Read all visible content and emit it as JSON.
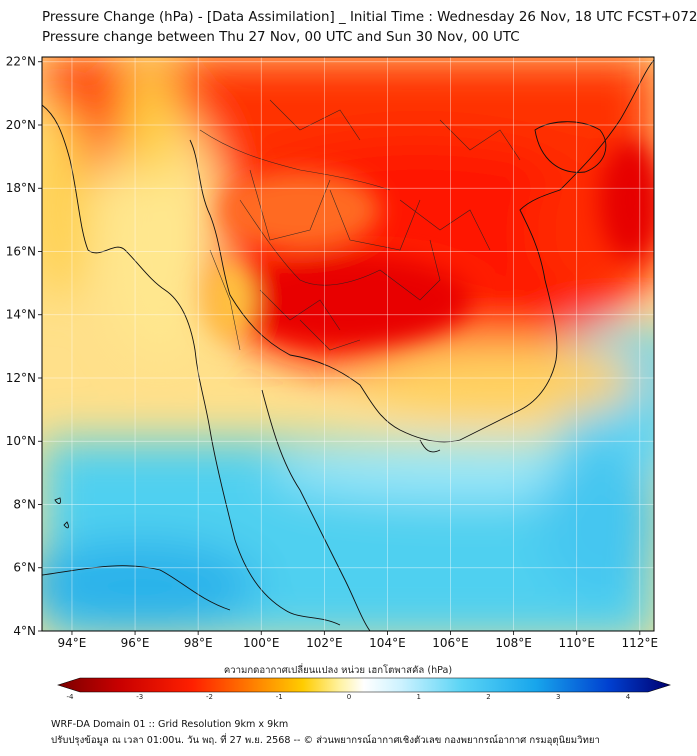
{
  "title": {
    "line1": "Pressure Change (hPa) - [Data Assimilation] _ Initial Time : Wednesday 26 Nov, 18 UTC FCST+072",
    "line2": "Pressure change between Thu 27 Nov, 00 UTC and Sun 30 Nov, 00 UTC"
  },
  "map": {
    "lat_labels": [
      "22°N",
      "20°N",
      "18°N",
      "16°N",
      "14°N",
      "12°N",
      "10°N",
      "8°N",
      "6°N",
      "4°N"
    ],
    "lon_labels": [
      "94°E",
      "96°E",
      "98°E",
      "100°E",
      "102°E",
      "104°E",
      "106°E",
      "108°E",
      "110°E",
      "112°E"
    ],
    "lat_values": [
      22,
      20,
      18,
      16,
      14,
      12,
      10,
      8,
      6,
      4
    ],
    "lon_values": [
      94,
      96,
      98,
      100,
      102,
      104,
      106,
      108,
      110,
      112
    ]
  },
  "colorbar": {
    "label": "ความกดอากาศเปลี่ยนแปลง หน่วย เฮกโตพาสคัล (hPa)",
    "ticks": [
      "-4",
      "-3",
      "-2",
      "-1",
      "0",
      "1",
      "2",
      "3",
      "4"
    ],
    "tick_values": [
      -4,
      -3,
      -2,
      -1,
      0,
      1,
      2,
      3,
      4
    ],
    "colors": [
      "#7a0000",
      "#d60000",
      "#ff2a00",
      "#ff7a00",
      "#ffc400",
      "#fff3a0",
      "#ffffff",
      "#c8f2ff",
      "#58d4f5",
      "#1aa4ea",
      "#0040d0",
      "#00007a"
    ]
  },
  "footer": {
    "line1": "WRF-DA Domain 01 :: Grid Resolution 9km x 9km",
    "line2": "ปรับปรุงข้อมูล ณ เวลา 01:00น. วัน พฤ. ที่ 27 พ.ย. 2568 -- © ส่วนพยากรณ์อากาศเชิงตัวเลข กองพยากรณ์อากาศ กรมอุตุนิยมวิทยา"
  }
}
